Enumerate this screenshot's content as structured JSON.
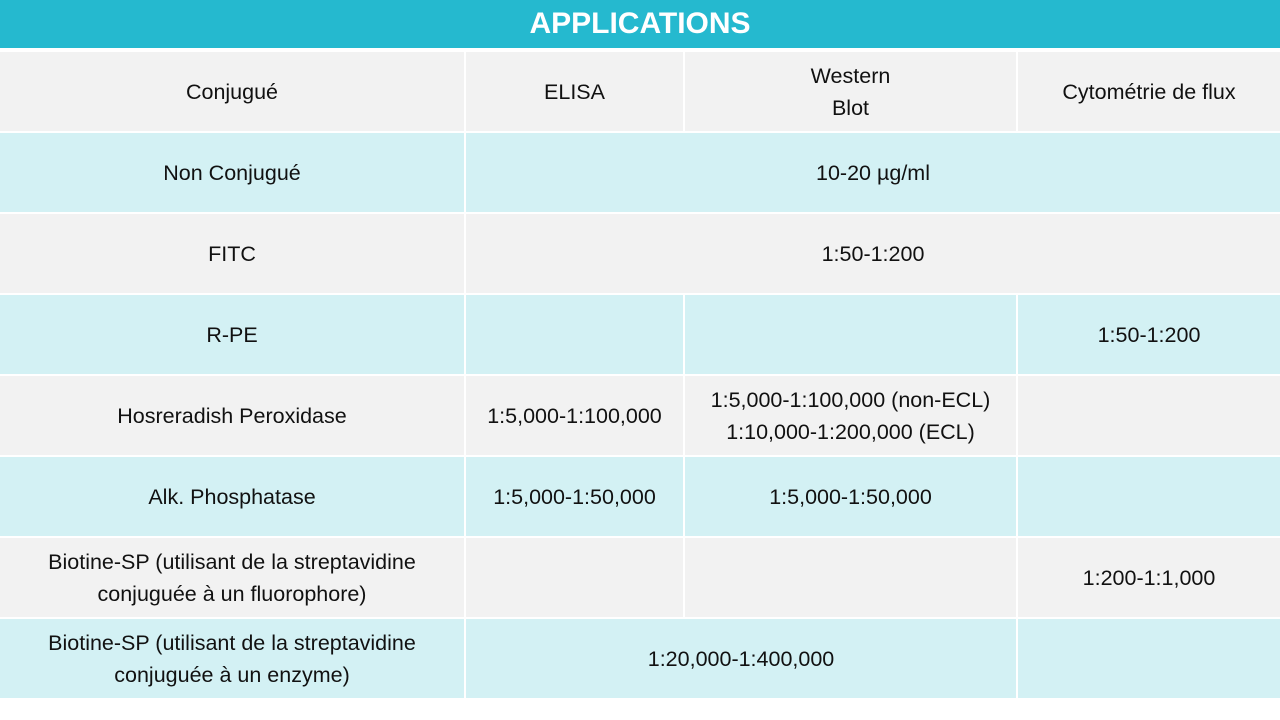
{
  "title": "APPLICATIONS",
  "colors": {
    "header": "#25b9cf",
    "row_light": "#f2f2f2",
    "row_cyan": "#d3f1f4"
  },
  "table": {
    "headers": [
      "Conjugué",
      "ELISA",
      "Western\nBlot",
      "Cytométrie de flux"
    ],
    "rows": [
      {
        "conjugate": "Non Conjugué",
        "cells": [
          {
            "text": "10-20 µg/ml",
            "span": 3
          }
        ]
      },
      {
        "conjugate": "FITC",
        "cells": [
          {
            "text": "1:50-1:200",
            "span": 3
          }
        ]
      },
      {
        "conjugate": "R-PE",
        "cells": [
          {
            "text": "",
            "span": 1
          },
          {
            "text": "",
            "span": 1
          },
          {
            "text": "1:50-1:200",
            "span": 1
          }
        ]
      },
      {
        "conjugate": "Hosreradish Peroxidase",
        "cells": [
          {
            "text": "1:5,000-1:100,000",
            "span": 1
          },
          {
            "text": "1:5,000-1:100,000 (non-ECL)\n1:10,000-1:200,000 (ECL)",
            "span": 1
          },
          {
            "text": "",
            "span": 1
          }
        ]
      },
      {
        "conjugate": "Alk. Phosphatase",
        "cells": [
          {
            "text": "1:5,000-1:50,000",
            "span": 1
          },
          {
            "text": "1:5,000-1:50,000",
            "span": 1
          },
          {
            "text": "",
            "span": 1
          }
        ]
      },
      {
        "conjugate": "Biotine-SP (utilisant de la streptavidine\nconjuguée à un fluorophore)",
        "cells": [
          {
            "text": "",
            "span": 1
          },
          {
            "text": "",
            "span": 1
          },
          {
            "text": "1:200-1:1,000",
            "span": 1
          }
        ]
      },
      {
        "conjugate": "Biotine-SP (utilisant de la streptavidine\nconjuguée à un enzyme)",
        "cells": [
          {
            "text": "1:20,000-1:400,000",
            "span": 2
          },
          {
            "text": "",
            "span": 1
          }
        ]
      }
    ]
  }
}
